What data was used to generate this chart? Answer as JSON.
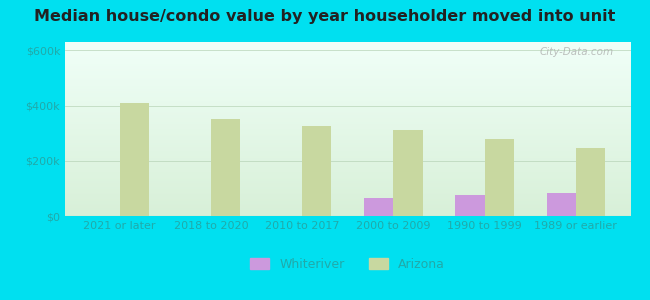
{
  "title": "Median house/condo value by year householder moved into unit",
  "categories": [
    "2021 or later",
    "2018 to 2020",
    "2010 to 2017",
    "2000 to 2009",
    "1990 to 1999",
    "1989 or earlier"
  ],
  "whiteriver": [
    null,
    null,
    null,
    65000,
    75000,
    85000
  ],
  "arizona": [
    410000,
    350000,
    325000,
    310000,
    280000,
    245000
  ],
  "whiteriver_color": "#cc99dd",
  "arizona_color": "#c8d8a0",
  "yticks": [
    0,
    200000,
    400000,
    600000
  ],
  "ytick_labels": [
    "$0",
    "$200k",
    "$400k",
    "$600k"
  ],
  "ylim": [
    0,
    630000
  ],
  "bar_width": 0.32,
  "background_outer": "#00e0f0",
  "background_inner_top": "#f0fff8",
  "background_inner_bottom": "#d8f0d8",
  "legend_whiteriver": "Whiteriver",
  "legend_arizona": "Arizona",
  "watermark": "City-Data.com",
  "title_fontsize": 11.5,
  "tick_color": "#20aaaa",
  "tick_fontsize": 8
}
